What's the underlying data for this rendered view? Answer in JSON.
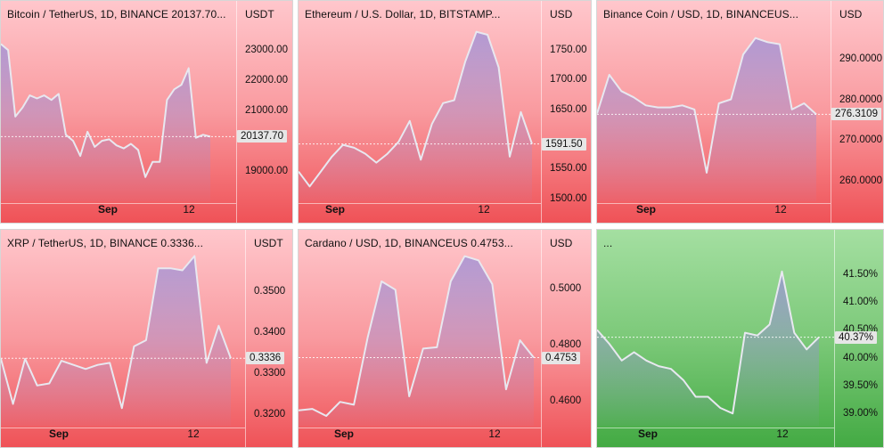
{
  "colors": {
    "red_panel_top": "#ffc7cc",
    "red_panel_bottom": "#ef5257",
    "green_panel_top": "#a4dfa1",
    "green_panel_bottom": "#43aa43",
    "line": "#e8e8f0",
    "area_fill": "#9a8fd8",
    "last_badge_bg": "#e6e6e6"
  },
  "chart_data": [
    {
      "type": "area",
      "title": "Bitcoin / TetherUS, 1D, BINANCE  20137.70...",
      "currency": "USDT",
      "theme": "red",
      "x_labels": [
        "Sep",
        "12"
      ],
      "yticks": [
        "23000.00",
        "22000.00",
        "21000.00",
        "19000.00"
      ],
      "ylim": [
        18000,
        23800
      ],
      "last_value": "20137.70",
      "values": [
        23200,
        23000,
        20800,
        21100,
        21500,
        21400,
        21500,
        21350,
        21550,
        20200,
        20000,
        19500,
        20300,
        19800,
        20000,
        20050,
        19850,
        19750,
        19900,
        19700,
        18800,
        19300,
        19300,
        21350,
        21700,
        21850,
        22400,
        20100,
        20200,
        20137.7
      ],
      "grid": false
    },
    {
      "type": "area",
      "title": "Ethereum / U.S. Dollar, 1D, BITSTAMP...",
      "currency": "USD",
      "theme": "red",
      "x_labels": [
        "Sep",
        "12"
      ],
      "yticks": [
        "1750.00",
        "1700.00",
        "1650.00",
        "1550.00",
        "1500.00"
      ],
      "ylim": [
        1495,
        1790
      ],
      "last_value": "1591.50",
      "values": [
        1545,
        1520,
        1545,
        1570,
        1590,
        1585,
        1575,
        1560,
        1575,
        1595,
        1630,
        1565,
        1625,
        1660,
        1665,
        1730,
        1780,
        1775,
        1720,
        1570,
        1645,
        1591.5
      ],
      "grid": false
    },
    {
      "type": "area",
      "title": "Binance Coin / USD, 1D, BINANCEUS...",
      "currency": "USD",
      "theme": "red",
      "x_labels": [
        "Sep",
        "12"
      ],
      "yticks": [
        "290.0000",
        "280.0000",
        "270.0000",
        "260.0000"
      ],
      "ylim": [
        255,
        298
      ],
      "last_value": "276.3109",
      "values": [
        276.5,
        286,
        282,
        280.5,
        278.5,
        278,
        278,
        278.5,
        277.5,
        262,
        279,
        280,
        291,
        295,
        294,
        293.5,
        277.5,
        279,
        276.3
      ],
      "grid": false
    },
    {
      "type": "area",
      "title": "XRP / TetherUS, 1D, BINANCE  0.3336...",
      "currency": "USDT",
      "theme": "red",
      "x_labels": [
        "Sep",
        "12"
      ],
      "yticks": [
        "0.3500",
        "0.3400",
        "0.3336",
        "0.3300",
        "0.3200"
      ],
      "ylim": [
        0.3172,
        0.3588
      ],
      "last_value": "0.3336",
      "values": [
        0.3335,
        0.3225,
        0.3335,
        0.327,
        0.3275,
        0.333,
        0.332,
        0.331,
        0.332,
        0.3325,
        0.3215,
        0.3365,
        0.338,
        0.3555,
        0.3555,
        0.355,
        0.3585,
        0.3325,
        0.3415,
        0.3336
      ],
      "grid": false
    },
    {
      "type": "area",
      "title": "Cardano / USD, 1D, BINANCEUS  0.4753...",
      "currency": "USD",
      "theme": "red",
      "x_labels": [
        "Sep",
        "12"
      ],
      "yticks": [
        "0.5000",
        "0.4800",
        "0.4753",
        "0.4600"
      ],
      "ylim": [
        0.451,
        0.512
      ],
      "last_value": "0.4753",
      "values": [
        0.4565,
        0.457,
        0.4545,
        0.4595,
        0.4585,
        0.4825,
        0.5025,
        0.4995,
        0.4615,
        0.4785,
        0.479,
        0.5025,
        0.5115,
        0.51,
        0.5015,
        0.464,
        0.4815,
        0.4753
      ],
      "grid": false
    },
    {
      "type": "area",
      "title": "...",
      "currency": "",
      "theme": "green",
      "x_labels": [
        "Sep",
        "12"
      ],
      "yticks": [
        "41.50%",
        "41.00%",
        "40.50%",
        "40.00%",
        "39.50%",
        "39.00%"
      ],
      "ylim": [
        38.78,
        41.85
      ],
      "last_value": "40.37%",
      "values": [
        40.5,
        40.25,
        39.95,
        40.1,
        39.95,
        39.85,
        39.8,
        39.6,
        39.3,
        39.3,
        39.1,
        39.0,
        40.45,
        40.4,
        40.6,
        41.55,
        40.45,
        40.15,
        40.37
      ],
      "grid": false
    }
  ]
}
